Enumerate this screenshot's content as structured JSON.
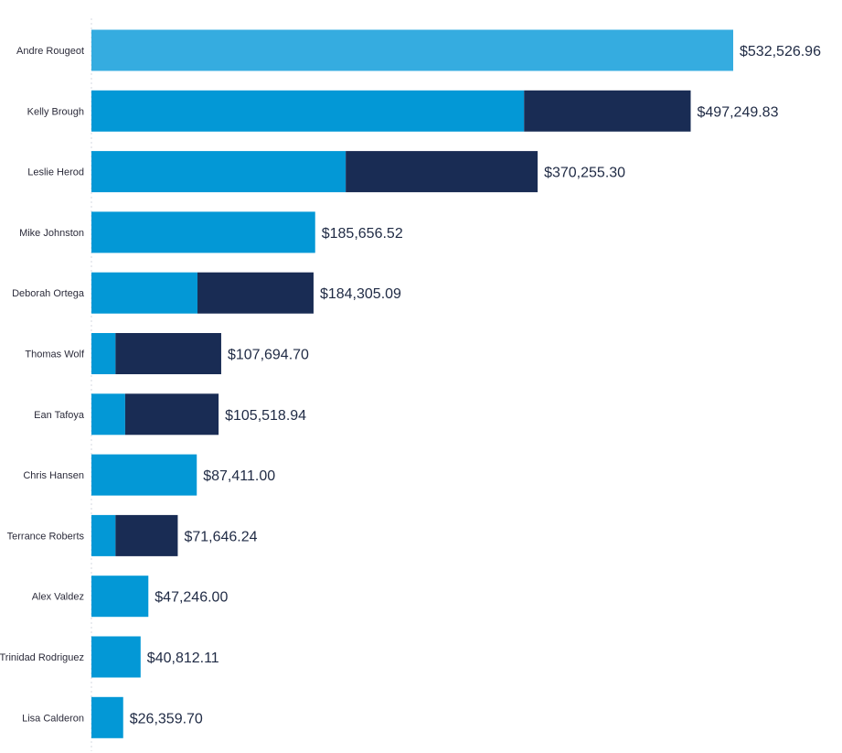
{
  "colors": {
    "highlight": "#35ace0",
    "base": "#0398d6",
    "dark": "#192c54",
    "axis": "#d5d9e0",
    "text": "#1f2a44"
  },
  "chart_data": {
    "type": "bar",
    "orientation": "horizontal",
    "stacked": true,
    "title": "",
    "xlabel": "",
    "ylabel": "",
    "xlim": [
      0,
      560000
    ],
    "grid": false,
    "legend": "none",
    "categories": [
      "Andre Rougeot",
      "Kelly Brough",
      "Leslie Herod",
      "Mike Johnston",
      "Deborah Ortega",
      "Thomas Wolf",
      "Ean Tafoya",
      "Chris Hansen",
      "Terrance Roberts",
      "Alex Valdez",
      "Trinidad Rodriguez",
      "Lisa Calderon"
    ],
    "series": [
      {
        "color": "#0398d6",
        "values": [
          532526.96,
          359000,
          211000,
          185656.52,
          88000,
          20000,
          28000,
          87411.0,
          20000,
          47246.0,
          40812.11,
          26359.7
        ]
      },
      {
        "color": "#192c54",
        "values": [
          0,
          138249.83,
          159255.3,
          0,
          96305.09,
          87694.7,
          77518.94,
          0,
          51646.24,
          0,
          0,
          0
        ]
      }
    ],
    "highlight_index": 0,
    "totals": [
      532526.96,
      497249.83,
      370255.3,
      185656.52,
      184305.09,
      107694.7,
      105518.94,
      87411.0,
      71646.24,
      47246.0,
      40812.11,
      26359.7
    ],
    "total_labels": [
      "$532,526.96",
      "$497,249.83",
      "$370,255.30",
      "$185,656.52",
      "$184,305.09",
      "$107,694.70",
      "$105,518.94",
      "$87,411.00",
      "$71,646.24",
      "$47,246.00",
      "$40,812.11",
      "$26,359.70"
    ]
  }
}
